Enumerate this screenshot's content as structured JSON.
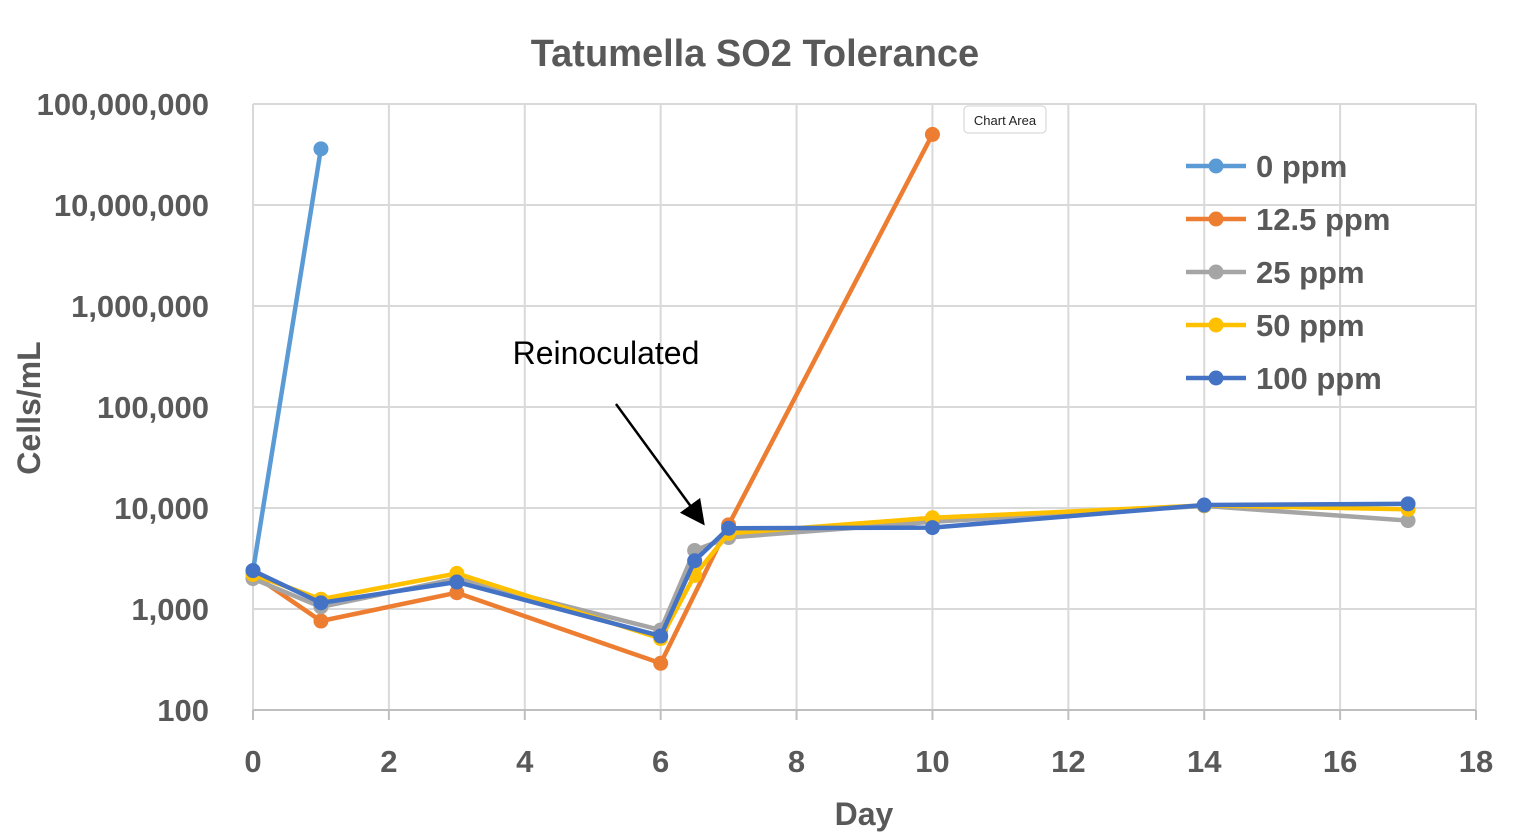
{
  "chart_data": {
    "type": "line",
    "title": "Tatumella SO2 Tolerance",
    "xlabel": "Day",
    "ylabel": "Cells/mL",
    "yscale": "log",
    "xlim": [
      0,
      18
    ],
    "ylim": [
      100,
      100000000
    ],
    "xticks": [
      0,
      2,
      4,
      6,
      8,
      10,
      12,
      14,
      16,
      18
    ],
    "yticks": [
      100,
      1000,
      10000,
      100000,
      1000000,
      10000000,
      100000000
    ],
    "ytick_labels": [
      "100",
      "1,000",
      "10,000",
      "100,000",
      "1,000,000",
      "10,000,000",
      "100,000,000"
    ],
    "grid": true,
    "legend_position": "top-right",
    "series": [
      {
        "name": "0 ppm",
        "color": "#5B9BD5",
        "x": [
          0,
          1
        ],
        "y": [
          2400,
          36000000
        ]
      },
      {
        "name": "12.5 ppm",
        "color": "#ED7D31",
        "x": [
          0,
          1,
          3,
          6,
          7,
          10
        ],
        "y": [
          2200,
          760,
          1450,
          290,
          6800,
          50000000
        ]
      },
      {
        "name": "25 ppm",
        "color": "#A5A5A5",
        "x": [
          0,
          1,
          3,
          6,
          6.5,
          7,
          10,
          14,
          17
        ],
        "y": [
          2000,
          1050,
          2000,
          620,
          3800,
          5100,
          7300,
          10500,
          7500
        ]
      },
      {
        "name": "50 ppm",
        "color": "#FFC000",
        "x": [
          0,
          1,
          3,
          6,
          6.5,
          7,
          10,
          14,
          17
        ],
        "y": [
          2200,
          1250,
          2250,
          510,
          2150,
          5600,
          8000,
          10600,
          9700
        ]
      },
      {
        "name": "100 ppm",
        "color": "#4472C4",
        "x": [
          0,
          1,
          3,
          6,
          6.5,
          7,
          10,
          14,
          17
        ],
        "y": [
          2400,
          1150,
          1850,
          540,
          3000,
          6300,
          6400,
          10700,
          11000
        ]
      }
    ],
    "annotations": [
      {
        "text": "Reinoculated",
        "arrow_to_x": 6.65,
        "arrow_to_y": 5600
      }
    ]
  },
  "tooltip": {
    "label": "Chart Area"
  }
}
